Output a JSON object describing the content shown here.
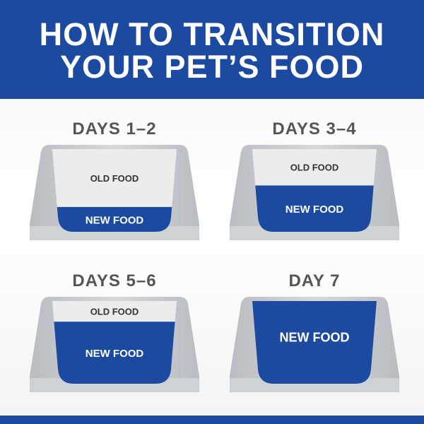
{
  "header": {
    "title_line1": "HOW TO TRANSITION",
    "title_line2": "YOUR PET’S FOOD"
  },
  "colors": {
    "brand_blue": "#1b4aa0",
    "bowl_gray": "#c9ccd0",
    "old_food": "#ececec"
  },
  "stages": [
    {
      "day": "DAYS 1–2",
      "old_label": "OLD FOOD",
      "new_label": "NEW FOOD",
      "new_food_fraction": 0.3
    },
    {
      "day": "DAYS 3–4",
      "old_label": "OLD FOOD",
      "new_label": "NEW FOOD",
      "new_food_fraction": 0.56
    },
    {
      "day": "DAYS 5–6",
      "old_label": "OLD FOOD",
      "new_label": "NEW FOOD",
      "new_food_fraction": 0.75
    },
    {
      "day": "DAY 7",
      "old_label": "",
      "new_label": "NEW FOOD",
      "new_food_fraction": 1.0
    }
  ]
}
